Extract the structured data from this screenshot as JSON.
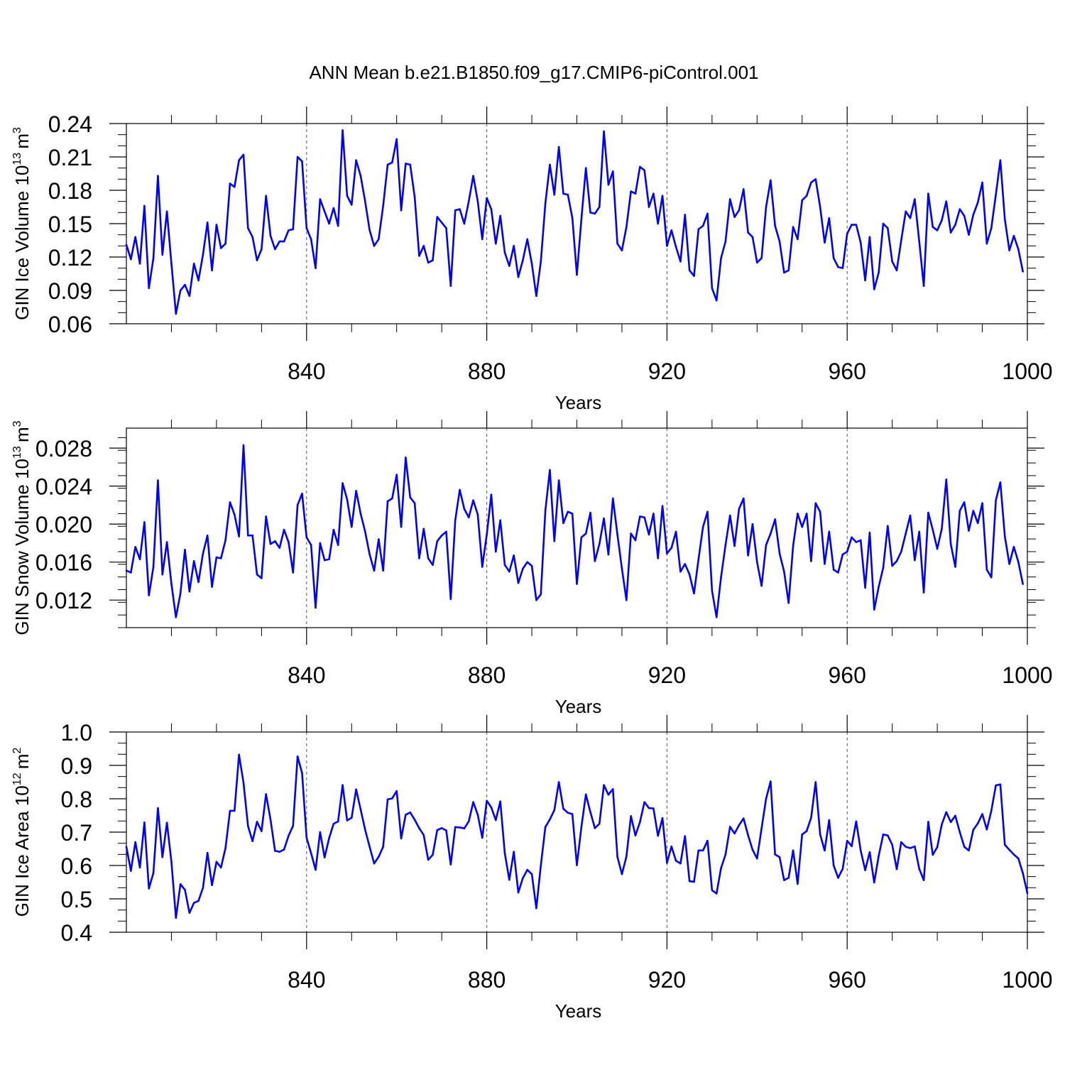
{
  "title": "ANN Mean b.e21.B1850.f09_g17.CMIP6-piControl.001",
  "colors": {
    "series": "#0000ff",
    "axes": "#000000",
    "grid": "#555555"
  },
  "chart_data": [
    {
      "type": "line",
      "ylabel": "GIN Ice Volume 10",
      "ylabel_exp": "13",
      "ylabel_unit": "m",
      "ylabel_unit_exp": "3",
      "xlabel": "Years",
      "xlim": [
        800,
        1000
      ],
      "ylim": [
        0.06,
        0.24
      ],
      "xticks": [
        840,
        880,
        920,
        960,
        1000
      ],
      "xtick_labels": [
        "840",
        "880",
        "920",
        "960",
        "1000"
      ],
      "yticks": [
        0.06,
        0.09,
        0.12,
        0.15,
        0.18,
        0.21,
        0.24
      ],
      "ytick_labels": [
        "0.06",
        "0.09",
        "0.12",
        "0.15",
        "0.18",
        "0.21",
        "0.24"
      ],
      "grid": "vertical dashed at 840, 880, 920, 960",
      "series": [
        {
          "x_start": 800,
          "values": [
            0.131,
            0.118,
            0.138,
            0.114,
            0.166,
            0.092,
            0.119,
            0.193,
            0.122,
            0.161,
            0.114,
            0.069,
            0.09,
            0.095,
            0.085,
            0.114,
            0.099,
            0.122,
            0.151,
            0.108,
            0.149,
            0.128,
            0.132,
            0.186,
            0.183,
            0.207,
            0.212,
            0.146,
            0.138,
            0.117,
            0.127,
            0.175,
            0.139,
            0.127,
            0.134,
            0.134,
            0.144,
            0.145,
            0.21,
            0.206,
            0.146,
            0.136,
            0.11,
            0.172,
            0.161,
            0.15,
            0.164,
            0.148,
            0.234,
            0.175,
            0.167,
            0.207,
            0.193,
            0.17,
            0.144,
            0.13,
            0.136,
            0.166,
            0.203,
            0.205,
            0.226,
            0.162,
            0.204,
            0.203,
            0.174,
            0.121,
            0.13,
            0.115,
            0.117,
            0.156,
            0.151,
            0.146,
            0.094,
            0.162,
            0.163,
            0.15,
            0.17,
            0.193,
            0.17,
            0.136,
            0.173,
            0.163,
            0.132,
            0.157,
            0.124,
            0.112,
            0.13,
            0.102,
            0.117,
            0.136,
            0.114,
            0.085,
            0.116,
            0.168,
            0.203,
            0.176,
            0.219,
            0.177,
            0.176,
            0.155,
            0.104,
            0.154,
            0.2,
            0.16,
            0.159,
            0.165,
            0.233,
            0.185,
            0.197,
            0.132,
            0.126,
            0.147,
            0.179,
            0.177,
            0.201,
            0.198,
            0.165,
            0.177,
            0.15,
            0.175,
            0.13,
            0.144,
            0.129,
            0.116,
            0.158,
            0.108,
            0.103,
            0.145,
            0.148,
            0.159,
            0.092,
            0.081,
            0.119,
            0.134,
            0.172,
            0.156,
            0.162,
            0.181,
            0.142,
            0.138,
            0.115,
            0.119,
            0.165,
            0.189,
            0.148,
            0.134,
            0.106,
            0.108,
            0.147,
            0.136,
            0.171,
            0.175,
            0.187,
            0.19,
            0.165,
            0.133,
            0.155,
            0.119,
            0.111,
            0.11,
            0.141,
            0.149,
            0.149,
            0.133,
            0.099,
            0.138,
            0.091,
            0.106,
            0.15,
            0.146,
            0.116,
            0.108,
            0.135,
            0.161,
            0.155,
            0.172,
            0.134,
            0.094,
            0.177,
            0.147,
            0.144,
            0.153,
            0.17,
            0.142,
            0.149,
            0.163,
            0.157,
            0.14,
            0.158,
            0.169,
            0.187,
            0.132,
            0.146,
            0.176,
            0.207,
            0.154,
            0.126,
            0.139,
            0.127,
            0.107
          ]
        }
      ]
    },
    {
      "type": "line",
      "ylabel": "GIN Snow Volume 10",
      "ylabel_exp": "13",
      "ylabel_unit": "m",
      "ylabel_unit_exp": "3",
      "xlabel": "Years",
      "xlim": [
        800,
        1000
      ],
      "ylim": [
        0.0091,
        0.0301
      ],
      "xticks": [
        840,
        880,
        920,
        960,
        1000
      ],
      "xtick_labels": [
        "840",
        "880",
        "920",
        "960",
        "1000"
      ],
      "yticks": [
        0.012,
        0.016,
        0.02,
        0.024,
        0.028
      ],
      "ytick_labels": [
        "0.012",
        "0.016",
        "0.020",
        "0.024",
        "0.028"
      ],
      "grid": "vertical dashed at 840, 880, 920, 960",
      "series": [
        {
          "x_start": 800,
          "values": [
            0.0151,
            0.0149,
            0.0176,
            0.0163,
            0.0202,
            0.0125,
            0.0155,
            0.0246,
            0.0147,
            0.0181,
            0.0137,
            0.0102,
            0.0127,
            0.0173,
            0.0129,
            0.0161,
            0.0139,
            0.0169,
            0.0188,
            0.0134,
            0.0165,
            0.0164,
            0.0183,
            0.0223,
            0.021,
            0.0187,
            0.0283,
            0.0188,
            0.0188,
            0.0147,
            0.0143,
            0.0208,
            0.0179,
            0.0182,
            0.0175,
            0.0194,
            0.0181,
            0.0149,
            0.022,
            0.0232,
            0.0186,
            0.0178,
            0.0112,
            0.018,
            0.0162,
            0.0163,
            0.0194,
            0.0178,
            0.0243,
            0.0226,
            0.0197,
            0.0235,
            0.0211,
            0.0192,
            0.0168,
            0.0151,
            0.0184,
            0.0151,
            0.0224,
            0.0227,
            0.0252,
            0.0197,
            0.027,
            0.0228,
            0.0222,
            0.0164,
            0.0195,
            0.0164,
            0.0157,
            0.0182,
            0.0188,
            0.0192,
            0.0121,
            0.0204,
            0.0236,
            0.0216,
            0.0207,
            0.0225,
            0.021,
            0.0155,
            0.0189,
            0.0231,
            0.0171,
            0.0204,
            0.0157,
            0.015,
            0.0167,
            0.0138,
            0.0153,
            0.016,
            0.0156,
            0.012,
            0.0126,
            0.0214,
            0.0257,
            0.0182,
            0.0246,
            0.0201,
            0.0213,
            0.0211,
            0.0137,
            0.0186,
            0.019,
            0.0212,
            0.0161,
            0.0179,
            0.0206,
            0.0168,
            0.0227,
            0.0189,
            0.0153,
            0.012,
            0.019,
            0.0183,
            0.0208,
            0.0207,
            0.0189,
            0.0211,
            0.0164,
            0.0219,
            0.0169,
            0.0175,
            0.0192,
            0.015,
            0.0158,
            0.0147,
            0.0127,
            0.0163,
            0.0197,
            0.0213,
            0.013,
            0.0102,
            0.0144,
            0.0178,
            0.0209,
            0.0177,
            0.0216,
            0.0227,
            0.0167,
            0.02,
            0.016,
            0.0135,
            0.0178,
            0.019,
            0.0205,
            0.0169,
            0.015,
            0.0117,
            0.0177,
            0.0211,
            0.0197,
            0.0211,
            0.0161,
            0.0222,
            0.0213,
            0.0158,
            0.0192,
            0.0152,
            0.0149,
            0.0168,
            0.0171,
            0.0186,
            0.0181,
            0.0183,
            0.0133,
            0.0191,
            0.011,
            0.0134,
            0.0154,
            0.0198,
            0.0156,
            0.0161,
            0.0171,
            0.019,
            0.0209,
            0.0162,
            0.0192,
            0.0128,
            0.0212,
            0.0194,
            0.0174,
            0.0195,
            0.0247,
            0.0179,
            0.0155,
            0.0214,
            0.0223,
            0.0193,
            0.0214,
            0.0201,
            0.0222,
            0.0152,
            0.0144,
            0.0225,
            0.0244,
            0.0187,
            0.0158,
            0.0176,
            0.016,
            0.0137
          ]
        }
      ]
    },
    {
      "type": "line",
      "ylabel": "GIN Ice Area 10",
      "ylabel_exp": "12",
      "ylabel_unit": "m",
      "ylabel_unit_exp": "2",
      "xlabel": "Years",
      "xlim": [
        800,
        1000
      ],
      "ylim": [
        0.4,
        1.0
      ],
      "xticks": [
        840,
        880,
        920,
        960,
        1000
      ],
      "xtick_labels": [
        "840",
        "880",
        "920",
        "960",
        "1000"
      ],
      "yticks": [
        0.4,
        0.5,
        0.6,
        0.7,
        0.8,
        0.9,
        1.0
      ],
      "ytick_labels": [
        "0.4",
        "0.5",
        "0.6",
        "0.7",
        "0.8",
        "0.9",
        "1.0"
      ],
      "grid": "vertical dashed at 840, 880, 920, 960",
      "series": [
        {
          "x_start": 800,
          "values": [
            0.656,
            0.584,
            0.67,
            0.594,
            0.729,
            0.531,
            0.578,
            0.772,
            0.625,
            0.728,
            0.611,
            0.443,
            0.544,
            0.527,
            0.458,
            0.488,
            0.494,
            0.533,
            0.638,
            0.541,
            0.611,
            0.594,
            0.652,
            0.764,
            0.764,
            0.932,
            0.848,
            0.718,
            0.673,
            0.731,
            0.703,
            0.814,
            0.737,
            0.644,
            0.641,
            0.648,
            0.689,
            0.719,
            0.927,
            0.877,
            0.683,
            0.637,
            0.587,
            0.7,
            0.624,
            0.682,
            0.725,
            0.732,
            0.841,
            0.735,
            0.743,
            0.828,
            0.768,
            0.707,
            0.656,
            0.606,
            0.626,
            0.656,
            0.798,
            0.801,
            0.823,
            0.681,
            0.752,
            0.759,
            0.737,
            0.712,
            0.691,
            0.617,
            0.632,
            0.706,
            0.712,
            0.705,
            0.603,
            0.715,
            0.714,
            0.711,
            0.732,
            0.79,
            0.752,
            0.683,
            0.794,
            0.774,
            0.736,
            0.792,
            0.637,
            0.557,
            0.641,
            0.519,
            0.562,
            0.587,
            0.574,
            0.472,
            0.6,
            0.715,
            0.738,
            0.766,
            0.85,
            0.77,
            0.758,
            0.754,
            0.601,
            0.715,
            0.813,
            0.76,
            0.712,
            0.725,
            0.841,
            0.812,
            0.829,
            0.626,
            0.574,
            0.627,
            0.748,
            0.69,
            0.73,
            0.79,
            0.772,
            0.771,
            0.689,
            0.742,
            0.608,
            0.657,
            0.614,
            0.606,
            0.688,
            0.553,
            0.551,
            0.645,
            0.645,
            0.674,
            0.526,
            0.516,
            0.592,
            0.633,
            0.716,
            0.696,
            0.721,
            0.741,
            0.691,
            0.647,
            0.621,
            0.711,
            0.8,
            0.852,
            0.633,
            0.625,
            0.556,
            0.563,
            0.645,
            0.545,
            0.693,
            0.703,
            0.743,
            0.85,
            0.693,
            0.645,
            0.736,
            0.6,
            0.563,
            0.59,
            0.674,
            0.658,
            0.732,
            0.645,
            0.586,
            0.64,
            0.549,
            0.629,
            0.693,
            0.69,
            0.662,
            0.589,
            0.67,
            0.656,
            0.652,
            0.657,
            0.59,
            0.556,
            0.731,
            0.632,
            0.655,
            0.723,
            0.76,
            0.73,
            0.749,
            0.7,
            0.656,
            0.645,
            0.707,
            0.726,
            0.754,
            0.708,
            0.764,
            0.84,
            0.843,
            0.662,
            0.647,
            0.633,
            0.621,
            0.577,
            0.517
          ]
        }
      ]
    }
  ]
}
